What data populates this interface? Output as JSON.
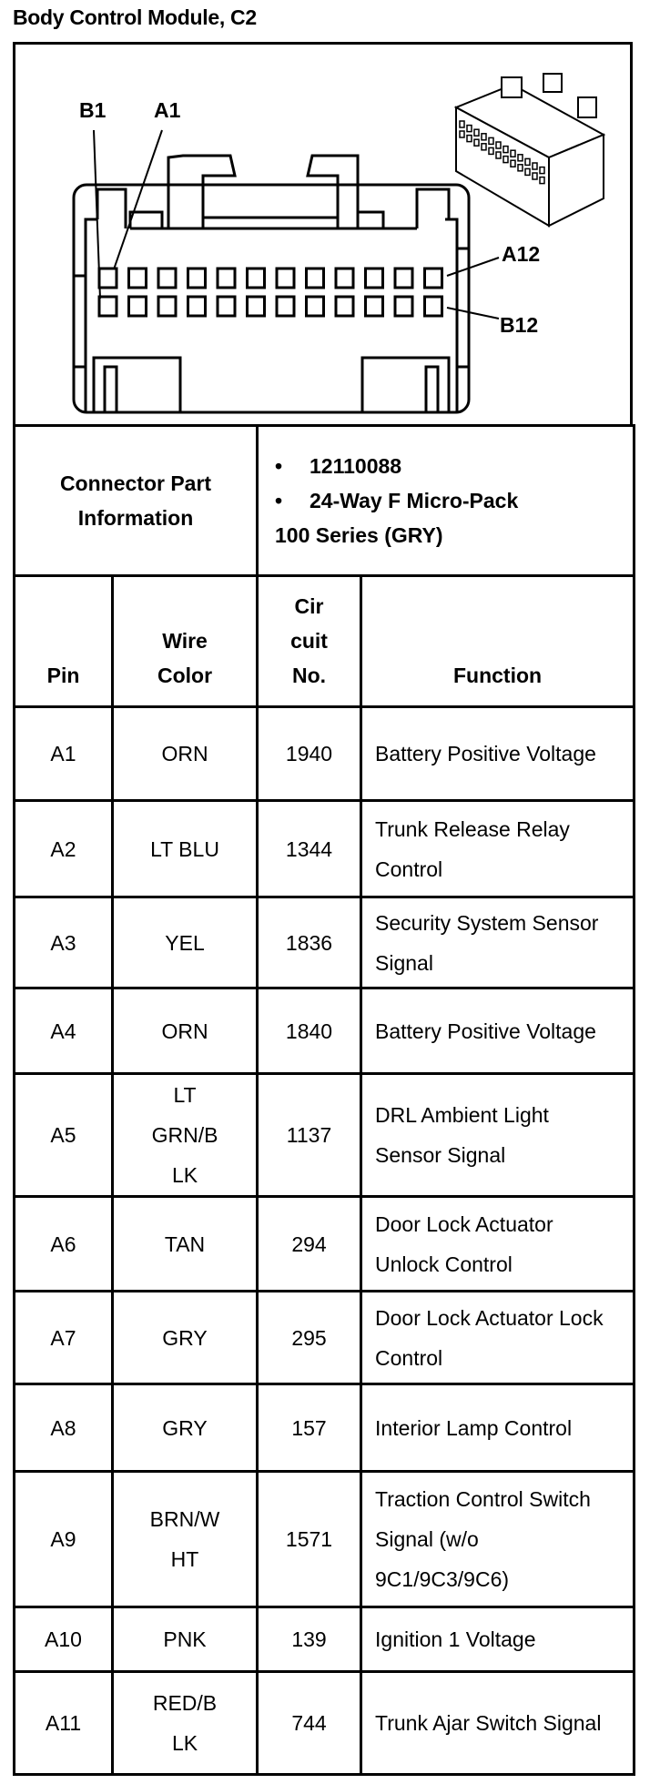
{
  "title": "Body Control Module, C2",
  "diagram": {
    "icon": "connector-face-drawing",
    "labels": {
      "b1": "B1",
      "a1": "A1",
      "a12": "A12",
      "b12": "B12"
    }
  },
  "part_info": {
    "label": "Connector Part Information",
    "bullets": [
      "12110088",
      "24-Way F Micro-Pack"
    ],
    "series": "100 Series (GRY)"
  },
  "headers": {
    "pin": "Pin",
    "wire_color": "Wire Color",
    "circuit": "Cir cuit No.",
    "function": "Function"
  },
  "rows": [
    {
      "pin": "A1",
      "color": "ORN",
      "circuit": "1940",
      "function": "Battery Positive Voltage"
    },
    {
      "pin": "A2",
      "color": "LT BLU",
      "circuit": "1344",
      "function": "Trunk Release Relay Control"
    },
    {
      "pin": "A3",
      "color": "YEL",
      "circuit": "1836",
      "function": "Security System Sensor Signal"
    },
    {
      "pin": "A4",
      "color": "ORN",
      "circuit": "1840",
      "function": "Battery Positive Voltage"
    },
    {
      "pin": "A5",
      "color": "LT GRN/BLK",
      "circuit": "1137",
      "function": "DRL Ambient Light Sensor Signal"
    },
    {
      "pin": "A6",
      "color": "TAN",
      "circuit": "294",
      "function": "Door Lock Actuator Unlock Control"
    },
    {
      "pin": "A7",
      "color": "GRY",
      "circuit": "295",
      "function": "Door Lock Actuator Lock Control"
    },
    {
      "pin": "A8",
      "color": "GRY",
      "circuit": "157",
      "function": "Interior Lamp Control"
    },
    {
      "pin": "A9",
      "color": "BRN/WHT",
      "circuit": "1571",
      "function": "Traction Control Switch Signal (w/o 9C1/9C3/9C6)"
    },
    {
      "pin": "A10",
      "color": "PNK",
      "circuit": "139",
      "function": "Ignition 1 Voltage"
    },
    {
      "pin": "A11",
      "color": "RED/BLK",
      "circuit": "744",
      "function": "Trunk Ajar Switch Signal"
    }
  ]
}
